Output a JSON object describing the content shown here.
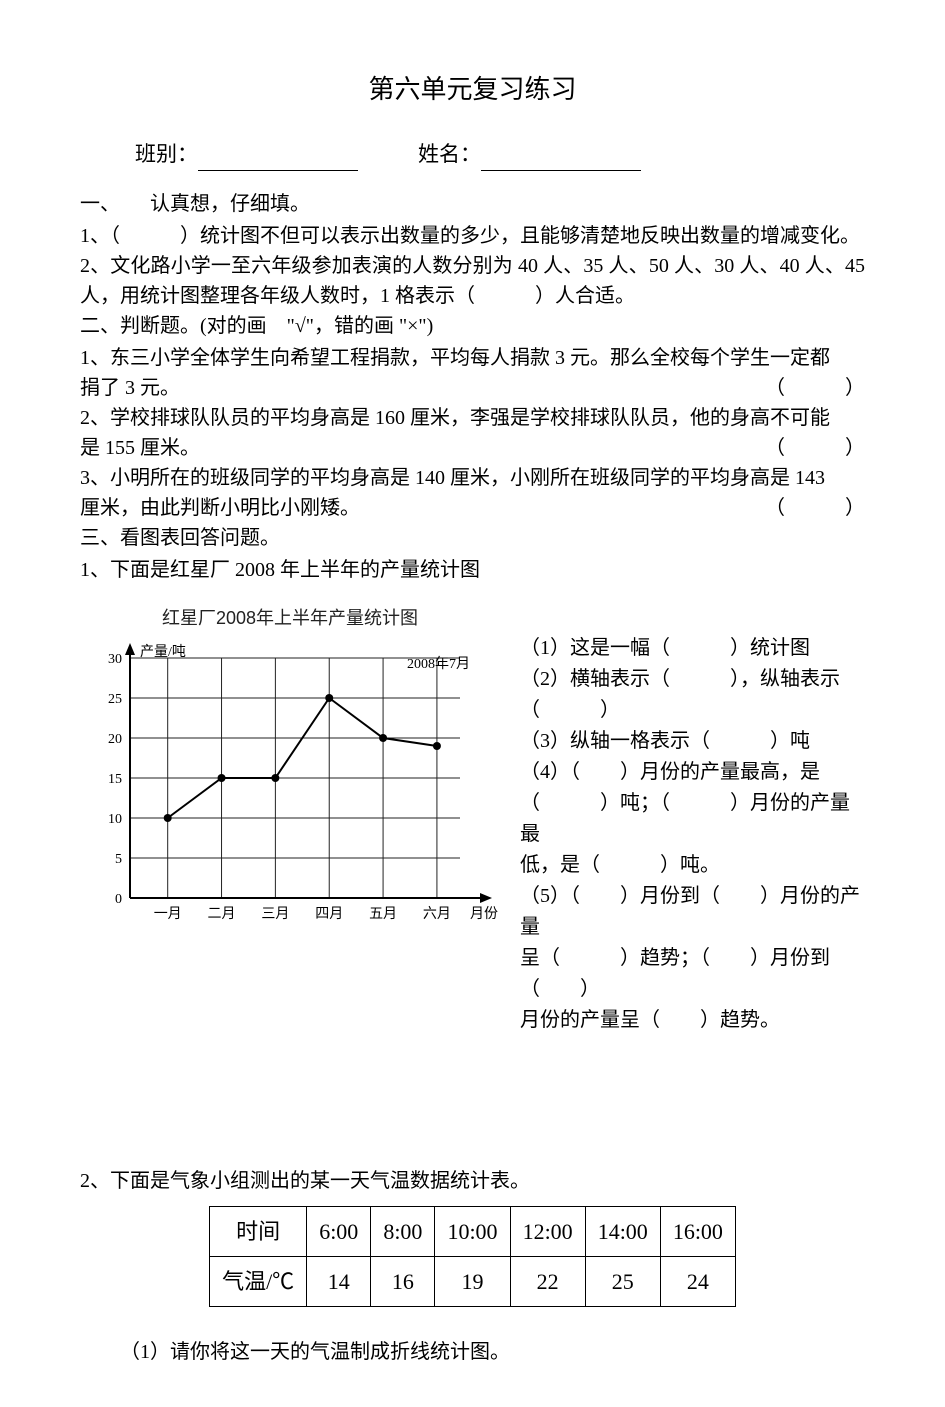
{
  "title": "第六单元复习练习",
  "header": {
    "class_label": "班别：",
    "name_label": "姓名："
  },
  "sec1": {
    "heading": "一、　　认真想，仔细填。",
    "q1": "1、（　　　）统计图不但可以表示出数量的多少，且能够清楚地反映出数量的增减变化。",
    "q2": "2、文化路小学一至六年级参加表演的人数分别为 40 人、35 人、50 人、30 人、40 人、45 人，用统计图整理各年级人数时，1 格表示（　　　）人合适。"
  },
  "sec2": {
    "heading": "二、判断题。(对的画　\"√\"，错的画 \"×\")",
    "q1a": "1、东三小学全体学生向希望工程捐款，平均每人捐款 3 元。那么全校每个学生一定都",
    "q1b": "捐了 3 元。",
    "q2a": "2、学校排球队队员的平均身高是 160 厘米，李强是学校排球队队员，他的身高不可能",
    "q2b": "是 155 厘米。",
    "q3a": "3、小明所在的班级同学的平均身高是 140 厘米，小刚所在班级同学的平均身高是 143",
    "q3b": "厘米，由此判断小明比小刚矮。",
    "paren": "（　　　）"
  },
  "sec3": {
    "heading": "三、看图表回答问题。",
    "q1": "1、下面是红星厂 2008 年上半年的产量统计图"
  },
  "chart": {
    "title": "红星厂2008年上半年产量统计图",
    "date_label": "2008年7月",
    "y_label": "产量/吨",
    "x_label": "月份",
    "background": "#ffffff",
    "axis_color": "#000000",
    "grid_color": "#222222",
    "line_color": "#000000",
    "point_fill": "#000000",
    "x_ticks": [
      "一月",
      "二月",
      "三月",
      "四月",
      "五月",
      "六月"
    ],
    "y_ticks": [
      0,
      5,
      10,
      15,
      20,
      25,
      30
    ],
    "y_max": 30,
    "values": [
      10,
      15,
      15,
      25,
      20,
      19
    ],
    "title_fontsize": 18,
    "label_fontsize": 14,
    "line_width": 2,
    "point_radius": 4
  },
  "chart_questions": {
    "l1": "（1）这是一幅（　　　）统计图",
    "l2": "（2）横轴表示（　　　），纵轴表示",
    "l3": "（　　　）",
    "l4": "（3）纵轴一格表示（　　　）吨",
    "l5": "（4）（　　）月份的产量最高，是",
    "l6": "（　　　）吨；（　　　）月份的产量最",
    "l7": "低，是（　　　）吨。",
    "l8": "（5）（　　）月份到（　　）月份的产量",
    "l9": "呈（　　　）趋势；（　　）月份到（　　）",
    "l10": "月份的产量呈（　　）趋势。"
  },
  "sec3q2": {
    "intro": "2、下面是气象小组测出的某一天气温数据统计表。",
    "sub1": "（1）请你将这一天的气温制成折线统计图。"
  },
  "table": {
    "row_labels": [
      "时间",
      "气温/℃"
    ],
    "columns": [
      "6:00",
      "8:00",
      "10:00",
      "12:00",
      "14:00",
      "16:00"
    ],
    "values": [
      14,
      16,
      19,
      22,
      25,
      24
    ],
    "border_color": "#000000",
    "cell_fontsize": 22
  }
}
